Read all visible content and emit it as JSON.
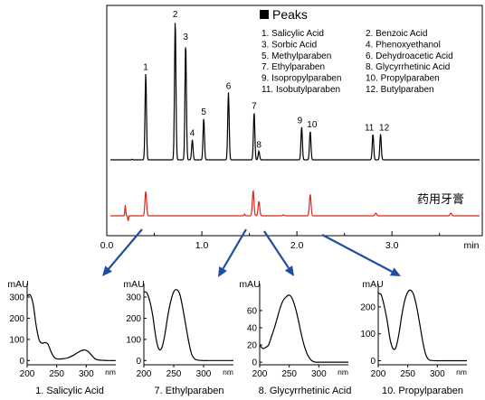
{
  "chart_data": [
    {
      "type": "line",
      "xlabel": "",
      "x_unit": "min",
      "xlim": [
        0.0,
        3.95
      ],
      "xticks": [
        "0.0",
        "1.0",
        "2.0",
        "3.0"
      ],
      "xtick_values": [
        0.0,
        1.0,
        2.0,
        3.0
      ],
      "legend_title": "Peaks",
      "legend_items": [
        "1.  Salicylic Acid",
        "2.  Benzoic Acid",
        "3.  Sorbic Acid",
        "4.  Phenoxyethanol",
        "5.  Methylparaben",
        "6.  Dehydroacetic Acid",
        "7.  Ethylparaben",
        "8.  Glycyrrhetinic Acid",
        "9.  Isopropylparaben",
        "10. Propylparaben",
        "11. Isobutylparaben",
        "12. Butylparaben"
      ],
      "peak_labels": [
        "1",
        "2",
        "3",
        "4",
        "5",
        "6",
        "7",
        "8",
        "9",
        "10",
        "11",
        "12"
      ],
      "peak_times": [
        0.41,
        0.72,
        0.83,
        0.9,
        1.02,
        1.28,
        1.55,
        1.6,
        2.05,
        2.14,
        2.8,
        2.88
      ],
      "peak_heights": [
        0.6,
        0.97,
        0.81,
        0.14,
        0.29,
        0.47,
        0.33,
        0.06,
        0.23,
        0.2,
        0.18,
        0.18
      ],
      "series": [
        {
          "color": "#000000"
        },
        {
          "name": "药用牙膏",
          "color": "#d62718",
          "peak_times": [
            0.41,
            1.54,
            1.6,
            2.14,
            2.83,
            3.62
          ],
          "peak_heights": [
            0.27,
            0.28,
            0.16,
            0.24,
            0.03,
            0.03
          ]
        }
      ]
    },
    {
      "type": "line",
      "caption": "1. Salicylic Acid",
      "ylabel": "mAU",
      "xunit": "nm",
      "xlim": [
        200,
        350
      ],
      "ylim": [
        -20,
        330
      ],
      "xticks": [
        "200",
        "250",
        "300",
        "nm"
      ],
      "yticks": [
        "0",
        "100",
        "200",
        "300"
      ],
      "x": [
        200,
        205,
        210,
        215,
        220,
        225,
        230,
        235,
        240,
        245,
        250,
        260,
        270,
        280,
        290,
        296,
        300,
        305,
        310,
        315,
        320,
        330,
        340,
        350
      ],
      "y": [
        305,
        310,
        270,
        170,
        100,
        82,
        85,
        78,
        45,
        18,
        8,
        8,
        14,
        28,
        45,
        50,
        48,
        38,
        22,
        8,
        3,
        1,
        0,
        0
      ]
    },
    {
      "type": "line",
      "caption": "7. Ethylparaben",
      "ylabel": "mAU",
      "xunit": "nm",
      "xlim": [
        200,
        350
      ],
      "ylim": [
        -20,
        330
      ],
      "xticks": [
        "200",
        "250",
        "300",
        "nm"
      ],
      "yticks": [
        "0",
        "100",
        "200",
        "300"
      ],
      "x": [
        200,
        205,
        210,
        215,
        220,
        225,
        230,
        235,
        240,
        245,
        250,
        255,
        260,
        265,
        270,
        275,
        280,
        285,
        290,
        300,
        310,
        320,
        350
      ],
      "y": [
        325,
        320,
        280,
        210,
        110,
        55,
        60,
        120,
        210,
        280,
        325,
        335,
        315,
        250,
        170,
        90,
        30,
        8,
        2,
        0,
        0,
        0,
        0
      ]
    },
    {
      "type": "line",
      "caption": "8. Glycyrrhetinic Acid",
      "ylabel": "mAU",
      "xunit": "nm",
      "xlim": [
        200,
        350
      ],
      "ylim": [
        -3,
        83
      ],
      "xticks": [
        "200",
        "250",
        "300",
        "nm"
      ],
      "yticks": [
        "0",
        "20",
        "40",
        "60"
      ],
      "x": [
        200,
        205,
        210,
        215,
        220,
        225,
        230,
        235,
        240,
        245,
        250,
        255,
        260,
        265,
        270,
        275,
        280,
        285,
        290,
        295,
        300,
        310,
        350
      ],
      "y": [
        20,
        16,
        17,
        20,
        30,
        40,
        52,
        64,
        72,
        76,
        78,
        74,
        64,
        50,
        34,
        20,
        10,
        4,
        1,
        0,
        0,
        0,
        0
      ]
    },
    {
      "type": "line",
      "caption": "10. Propylparaben",
      "ylabel": "mAU",
      "xunit": "nm",
      "xlim": [
        200,
        350
      ],
      "ylim": [
        -15,
        260
      ],
      "xticks": [
        "200",
        "250",
        "300",
        "nm"
      ],
      "yticks": [
        "0",
        "100",
        "200"
      ],
      "x": [
        200,
        205,
        210,
        215,
        220,
        225,
        230,
        235,
        240,
        245,
        250,
        255,
        260,
        265,
        270,
        275,
        280,
        285,
        290,
        300,
        310,
        320,
        350
      ],
      "y": [
        250,
        245,
        205,
        150,
        80,
        45,
        50,
        100,
        170,
        225,
        255,
        262,
        245,
        200,
        140,
        75,
        25,
        5,
        1,
        0,
        0,
        0,
        0
      ]
    }
  ]
}
